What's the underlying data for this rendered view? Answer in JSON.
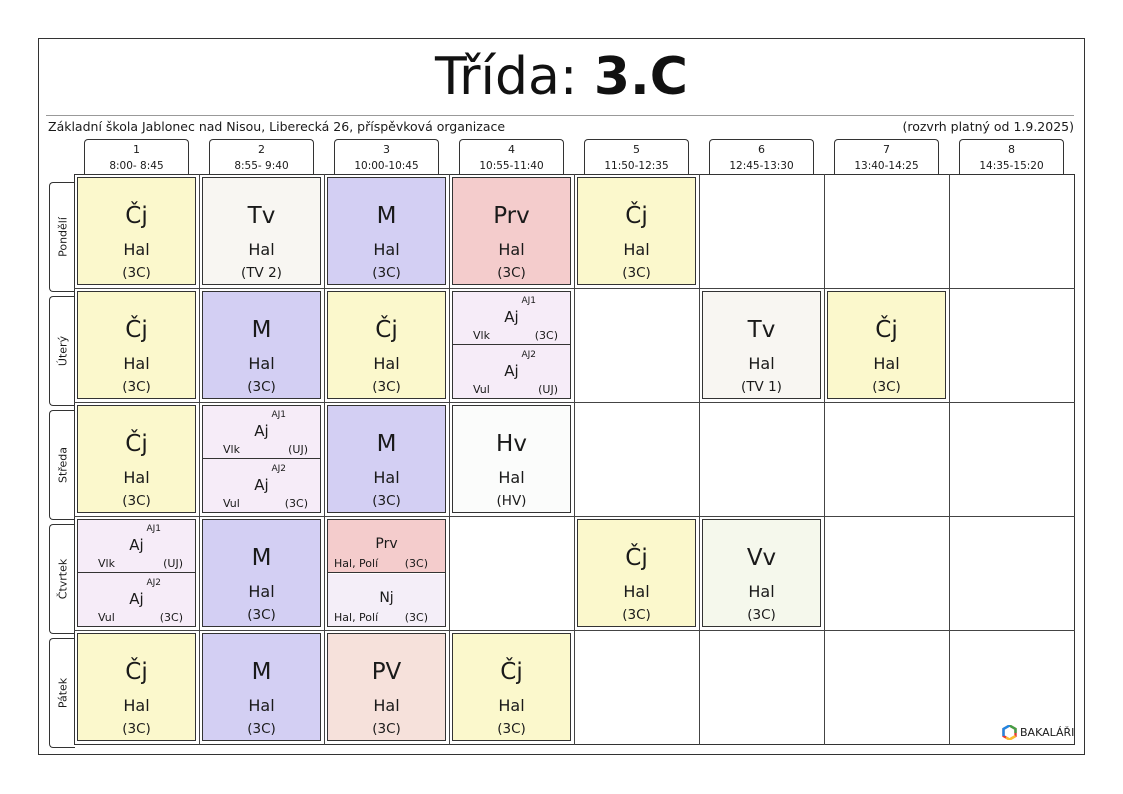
{
  "title": {
    "label": "Třída:",
    "class": "3.C"
  },
  "school": "Základní škola Jablonec nad Nisou, Liberecká 26, příspěvková organizace",
  "validity": "(rozvrh platný od 1.9.2025)",
  "periods": [
    {
      "num": "1",
      "time": "8:00- 8:45"
    },
    {
      "num": "2",
      "time": "8:55- 9:40"
    },
    {
      "num": "3",
      "time": "10:00-10:45"
    },
    {
      "num": "4",
      "time": "10:55-11:40"
    },
    {
      "num": "5",
      "time": "11:50-12:35"
    },
    {
      "num": "6",
      "time": "12:45-13:30"
    },
    {
      "num": "7",
      "time": "13:40-14:25"
    },
    {
      "num": "8",
      "time": "14:35-15:20"
    }
  ],
  "days": [
    "Pondělí",
    "Úterý",
    "Středa",
    "Čtvrtek",
    "Pátek"
  ],
  "colors": {
    "cj": "#fbf8cc",
    "tv": "#f8f6f2",
    "m": "#d3cff3",
    "prv": "#f4cccc",
    "aj": "#f6ecf8",
    "hv": "#fbfcfb",
    "vv": "#f5f8ec",
    "pv": "#f6e1db",
    "nj": "#f4eef8"
  },
  "lessons": [
    {
      "day": 0,
      "period": 0,
      "subject": "Čj",
      "teacher": "Hal",
      "room": "(3C)",
      "color": "cj"
    },
    {
      "day": 0,
      "period": 1,
      "subject": "Tv",
      "teacher": "Hal",
      "room": "(TV 2)",
      "color": "tv"
    },
    {
      "day": 0,
      "period": 2,
      "subject": "M",
      "teacher": "Hal",
      "room": "(3C)",
      "color": "m"
    },
    {
      "day": 0,
      "period": 3,
      "subject": "Prv",
      "teacher": "Hal",
      "room": "(3C)",
      "color": "prv"
    },
    {
      "day": 0,
      "period": 4,
      "subject": "Čj",
      "teacher": "Hal",
      "room": "(3C)",
      "color": "cj"
    },
    {
      "day": 1,
      "period": 0,
      "subject": "Čj",
      "teacher": "Hal",
      "room": "(3C)",
      "color": "cj"
    },
    {
      "day": 1,
      "period": 1,
      "subject": "M",
      "teacher": "Hal",
      "room": "(3C)",
      "color": "m"
    },
    {
      "day": 1,
      "period": 2,
      "subject": "Čj",
      "teacher": "Hal",
      "room": "(3C)",
      "color": "cj"
    },
    {
      "day": 1,
      "period": 3,
      "color": "aj",
      "split": [
        {
          "group": "AJ1",
          "subject": "Aj",
          "teacher": "Vlk",
          "room": "(3C)"
        },
        {
          "group": "AJ2",
          "subject": "Aj",
          "teacher": "Vul",
          "room": "(UJ)"
        }
      ]
    },
    {
      "day": 1,
      "period": 5,
      "subject": "Tv",
      "teacher": "Hal",
      "room": "(TV 1)",
      "color": "tv"
    },
    {
      "day": 1,
      "period": 6,
      "subject": "Čj",
      "teacher": "Hal",
      "room": "(3C)",
      "color": "cj"
    },
    {
      "day": 2,
      "period": 0,
      "subject": "Čj",
      "teacher": "Hal",
      "room": "(3C)",
      "color": "cj"
    },
    {
      "day": 2,
      "period": 1,
      "color": "aj",
      "split": [
        {
          "group": "AJ1",
          "subject": "Aj",
          "teacher": "Vlk",
          "room": "(UJ)"
        },
        {
          "group": "AJ2",
          "subject": "Aj",
          "teacher": "Vul",
          "room": "(3C)"
        }
      ]
    },
    {
      "day": 2,
      "period": 2,
      "subject": "M",
      "teacher": "Hal",
      "room": "(3C)",
      "color": "m"
    },
    {
      "day": 2,
      "period": 3,
      "subject": "Hv",
      "teacher": "Hal",
      "room": "(HV)",
      "color": "hv"
    },
    {
      "day": 3,
      "period": 0,
      "color": "aj",
      "split": [
        {
          "group": "AJ1",
          "subject": "Aj",
          "teacher": "Vlk",
          "room": "(UJ)"
        },
        {
          "group": "AJ2",
          "subject": "Aj",
          "teacher": "Vul",
          "room": "(3C)"
        }
      ]
    },
    {
      "day": 3,
      "period": 1,
      "subject": "M",
      "teacher": "Hal",
      "room": "(3C)",
      "color": "m"
    },
    {
      "day": 3,
      "period": 2,
      "pair": [
        {
          "subject": "Prv",
          "teacher": "Hal, Polí",
          "room": "(3C)",
          "color": "prv"
        },
        {
          "subject": "Nj",
          "teacher": "Hal, Polí",
          "room": "(3C)",
          "color": "nj"
        }
      ]
    },
    {
      "day": 3,
      "period": 4,
      "subject": "Čj",
      "teacher": "Hal",
      "room": "(3C)",
      "color": "cj"
    },
    {
      "day": 3,
      "period": 5,
      "subject": "Vv",
      "teacher": "Hal",
      "room": "(3C)",
      "color": "vv"
    },
    {
      "day": 4,
      "period": 0,
      "subject": "Čj",
      "teacher": "Hal",
      "room": "(3C)",
      "color": "cj"
    },
    {
      "day": 4,
      "period": 1,
      "subject": "M",
      "teacher": "Hal",
      "room": "(3C)",
      "color": "m"
    },
    {
      "day": 4,
      "period": 2,
      "subject": "PV",
      "teacher": "Hal",
      "room": "(3C)",
      "color": "pv"
    },
    {
      "day": 4,
      "period": 3,
      "subject": "Čj",
      "teacher": "Hal",
      "room": "(3C)",
      "color": "cj"
    }
  ],
  "logo": {
    "text": "BAKALÁŘI",
    "icon": "bakalari-logo-icon"
  }
}
